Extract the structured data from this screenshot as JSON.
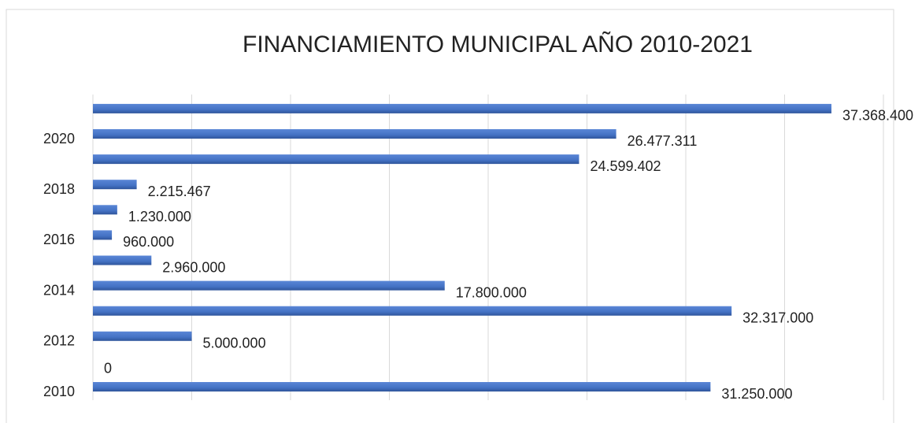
{
  "chart_data": {
    "type": "bar",
    "orientation": "horizontal",
    "title": "FINANCIAMIENTO MUNICIPAL AÑO 2010-2021",
    "categories": [
      "2010",
      null,
      "2012",
      null,
      "2014",
      null,
      "2016",
      null,
      "2018",
      null,
      "2020",
      null
    ],
    "values": [
      31250000,
      0,
      5000000,
      32317000,
      17800000,
      2960000,
      960000,
      1230000,
      2215467,
      24599402,
      26477311,
      37368400
    ],
    "value_labels": [
      "31.250.000",
      "0",
      "5.000.000",
      "32.317.000",
      "17.800.000",
      "2.960.000",
      "960.000",
      "1.230.000",
      "2.215.467",
      "24.599.402",
      "26.477.311",
      "37.368.400"
    ],
    "color": "#4472c4",
    "xlim": [
      0,
      40000000
    ],
    "xticks": [
      0,
      5000000,
      10000000,
      15000000,
      20000000,
      25000000,
      30000000,
      35000000,
      40000000
    ],
    "grid": true
  }
}
